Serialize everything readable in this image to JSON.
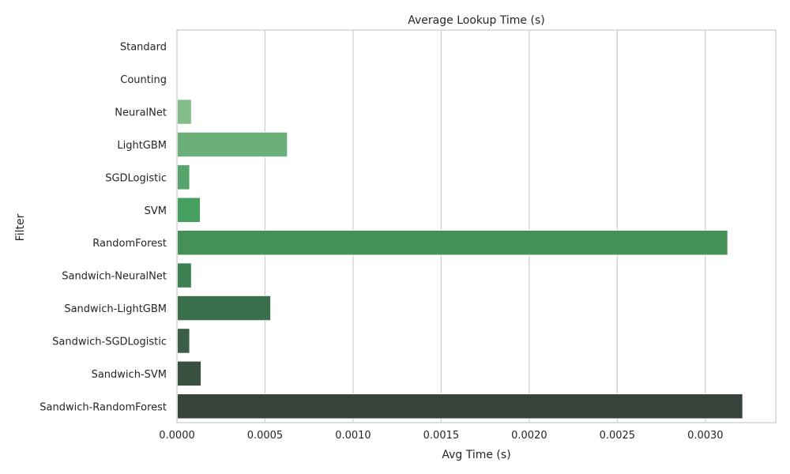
{
  "chart_data": {
    "type": "bar",
    "orientation": "horizontal",
    "title": "Average Lookup Time (s)",
    "xlabel": "Avg Time (s)",
    "ylabel": "Filter",
    "categories": [
      "Standard",
      "Counting",
      "NeuralNet",
      "LightGBM",
      "SGDLogistic",
      "SVM",
      "RandomForest",
      "Sandwich-NeuralNet",
      "Sandwich-LightGBM",
      "Sandwich-SGDLogistic",
      "Sandwich-SVM",
      "Sandwich-RandomForest"
    ],
    "values": [
      1e-06,
      2e-06,
      8e-05,
      0.000625,
      7e-05,
      0.00013,
      0.003125,
      8e-05,
      0.00053,
      7e-05,
      0.000135,
      0.00321
    ],
    "colors": [
      "#a8dcaa",
      "#96d39b",
      "#84bd8a",
      "#6daf79",
      "#55a56c",
      "#45a05f",
      "#459057",
      "#3d8051",
      "#3b6e4b",
      "#3a5e46",
      "#394f40",
      "#37433a"
    ],
    "xlim": [
      0,
      0.0034
    ],
    "xticks": [
      "0.0000",
      "0.0005",
      "0.0010",
      "0.0015",
      "0.0020",
      "0.0025",
      "0.0030"
    ],
    "xtick_values": [
      0,
      0.0005,
      0.001,
      0.0015,
      0.002,
      0.0025,
      0.003
    ],
    "grid": "vertical",
    "legend": "none",
    "grid_color": "#cccccc",
    "spine_color": "#cccccc"
  }
}
